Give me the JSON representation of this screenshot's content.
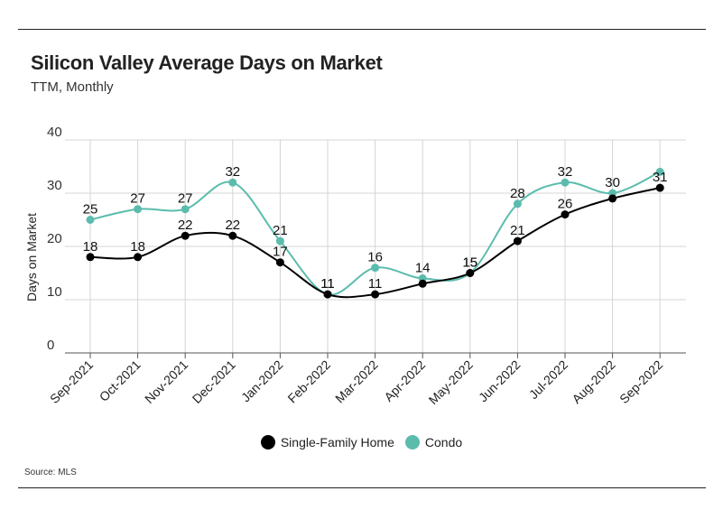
{
  "title": "Silicon Valley Average Days on Market",
  "subtitle": "TTM, Monthly",
  "source": "Source:  MLS",
  "colors": {
    "sfh": "#000000",
    "condo": "#5bbcad",
    "grid": "#d4d4d4",
    "axis": "#555555"
  },
  "chart_data": {
    "type": "line",
    "title": "Silicon Valley Average Days on Market",
    "subtitle": "TTM, Monthly",
    "xlabel": "",
    "ylabel": "Days on Market",
    "ylim": [
      0,
      40
    ],
    "yticks": [
      0,
      10,
      20,
      30,
      40
    ],
    "grid": true,
    "legend_position": "bottom-center",
    "categories": [
      "Sep-2021",
      "Oct-2021",
      "Nov-2021",
      "Dec-2021",
      "Jan-2022",
      "Feb-2022",
      "Mar-2022",
      "Apr-2022",
      "May-2022",
      "Jun-2022",
      "Jul-2022",
      "Aug-2022",
      "Sep-2022"
    ],
    "series": [
      {
        "name": "Single-Family Home",
        "color": "#000000",
        "values": [
          18,
          18,
          22,
          22,
          17,
          11,
          11,
          13,
          15,
          21,
          26,
          29,
          31
        ],
        "labels": [
          "18",
          "18",
          "22",
          "22",
          "17",
          "11",
          "11",
          "",
          "15",
          "21",
          "26",
          "",
          "31"
        ]
      },
      {
        "name": "Condo",
        "color": "#5bbcad",
        "values": [
          25,
          27,
          27,
          32,
          21,
          11,
          16,
          14,
          15,
          28,
          32,
          30,
          34
        ],
        "labels": [
          "25",
          "27",
          "27",
          "32",
          "21",
          "11",
          "16",
          "14",
          "15",
          "28",
          "32",
          "30",
          ""
        ]
      }
    ]
  }
}
